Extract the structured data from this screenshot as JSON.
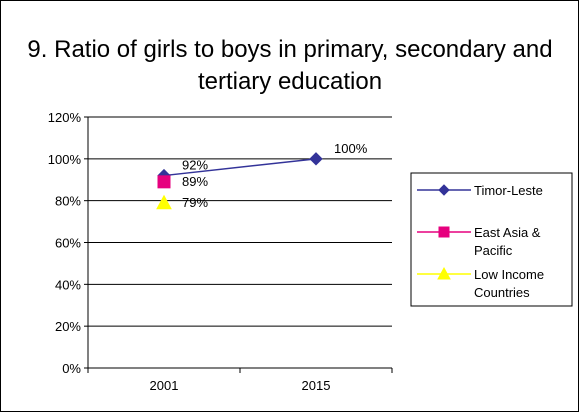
{
  "chart_data": {
    "type": "line",
    "title": "9. Ratio of girls to boys in primary, secondary and tertiary education",
    "categories": [
      "2001",
      "2015"
    ],
    "y_ticks": [
      "0%",
      "20%",
      "40%",
      "60%",
      "80%",
      "100%",
      "120%"
    ],
    "ylim": [
      0,
      120
    ],
    "grid": true,
    "legend_position": "right",
    "series": [
      {
        "name": "Timor-Leste",
        "values": [
          92,
          100
        ],
        "labels": [
          "92%",
          "100%"
        ],
        "color": "#333399",
        "marker": "diamond"
      },
      {
        "name": "East Asia & Pacific",
        "values": [
          89,
          null
        ],
        "labels": [
          "89%",
          null
        ],
        "color": "#E6007E",
        "marker": "square"
      },
      {
        "name": "Low Income Countries",
        "values": [
          79,
          null
        ],
        "labels": [
          "79%",
          null
        ],
        "color": "#FFFF00",
        "marker": "triangle"
      }
    ]
  }
}
